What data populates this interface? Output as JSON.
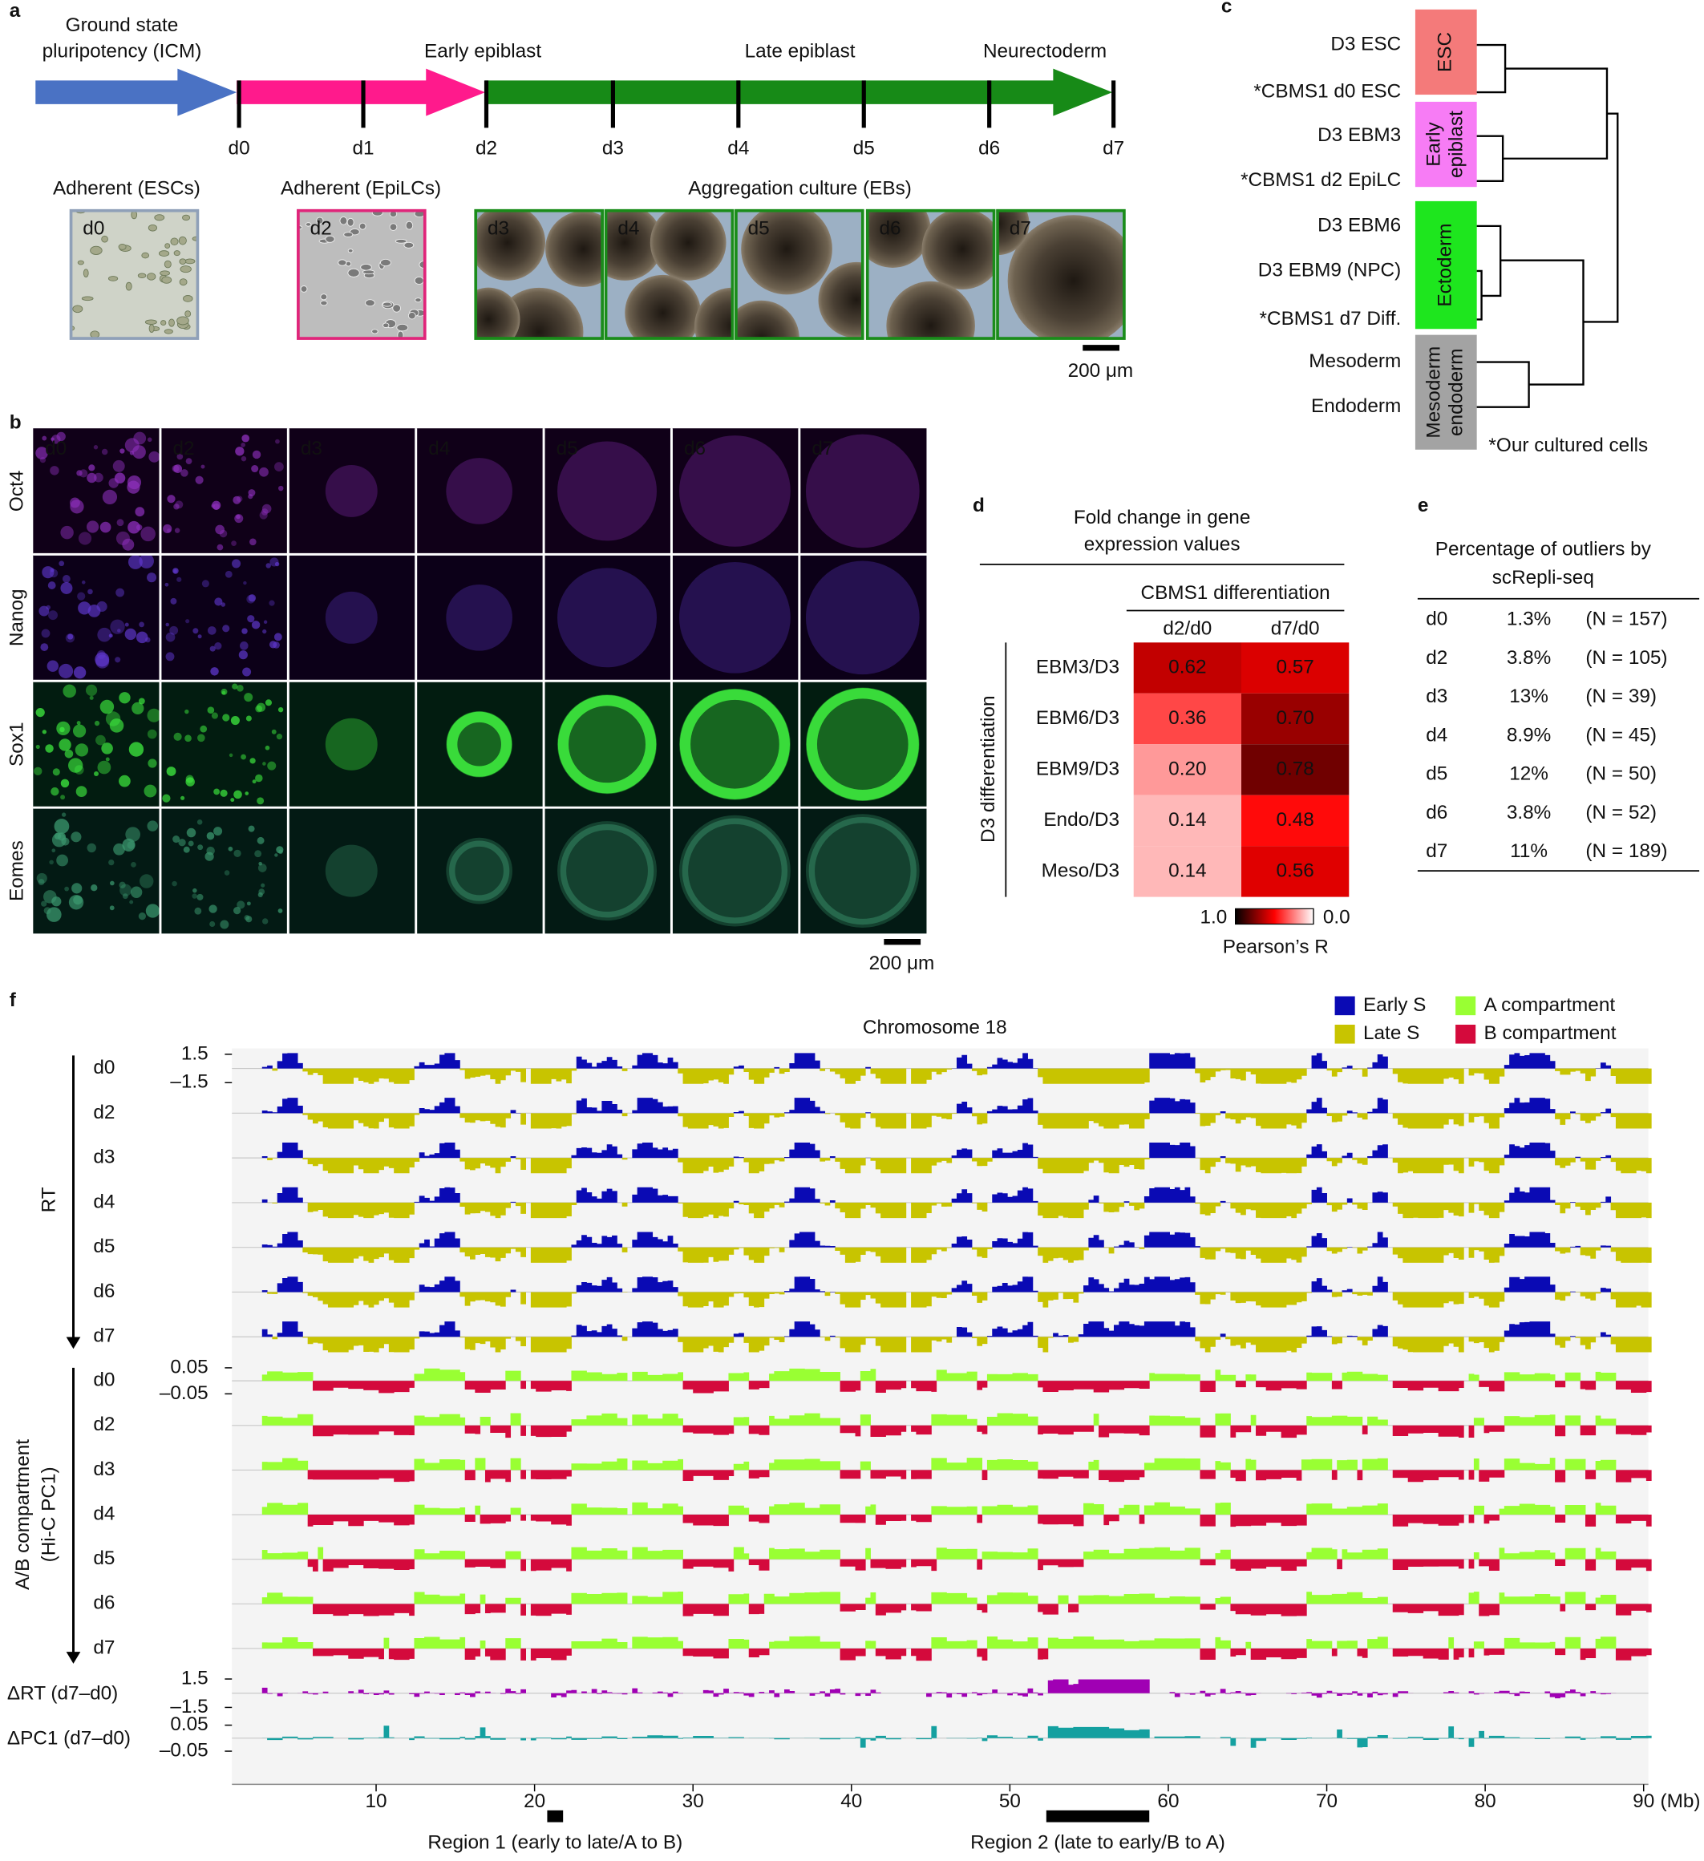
{
  "a": {
    "label": "a",
    "stages": [
      [
        "Ground state",
        "pluripotency (ICM)"
      ],
      [
        "Early epiblast"
      ],
      [
        "Late epiblast"
      ],
      [
        "Neurectoderm"
      ]
    ],
    "days": [
      "d0",
      "d1",
      "d2",
      "d3",
      "d4",
      "d5",
      "d6",
      "d7"
    ],
    "culture_labels": [
      "Adherent (ESCs)",
      "Adherent (EpiLCs)",
      "Aggregation culture (EBs)"
    ],
    "image_labels": [
      "d0",
      "d2",
      "d3",
      "d4",
      "d5",
      "d6",
      "d7"
    ],
    "scale_bar": "200 μm"
  },
  "b": {
    "label": "b",
    "columns": [
      "d0",
      "d2",
      "d3",
      "d4",
      "d5",
      "d6",
      "d7"
    ],
    "rows": [
      "Oct4",
      "Nanog",
      "Sox1",
      "Eomes"
    ],
    "scale_bar": "200 μm"
  },
  "c": {
    "label": "c",
    "leaves": [
      "D3 ESC",
      "*CBMS1 d0 ESC",
      "D3 EBM3",
      "*CBMS1 d2 EpiLC",
      "D3 EBM6",
      "D3 EBM9 (NPC)",
      "*CBMS1 d7 Diff.",
      "Mesoderm",
      "Endoderm"
    ],
    "groups": [
      {
        "lines": [
          "ESC"
        ],
        "color": "#f47a7a"
      },
      {
        "lines": [
          "Early",
          "epiblast"
        ],
        "color": "#f77cf5"
      },
      {
        "lines": [
          "Ectoderm"
        ],
        "color": "#1ee61e"
      },
      {
        "lines": [
          "Mesoderm",
          "endoderm"
        ],
        "color": "#a3a3a3"
      }
    ],
    "note": "*Our cultured cells"
  },
  "d": {
    "label": "d",
    "title": [
      "Fold change in gene",
      "expression values"
    ],
    "column_group": "CBMS1 differentiation",
    "columns": [
      "d2/d0",
      "d7/d0"
    ],
    "row_group": "D3 differentiation",
    "rows": [
      "EBM3/D3",
      "EBM6/D3",
      "EBM9/D3",
      "Endo/D3",
      "Meso/D3"
    ],
    "values": [
      [
        0.62,
        0.57
      ],
      [
        0.36,
        0.7
      ],
      [
        0.2,
        0.78
      ],
      [
        0.14,
        0.48
      ],
      [
        0.14,
        0.56
      ]
    ],
    "value_labels": [
      [
        "0.62",
        "0.57"
      ],
      [
        "0.36",
        "0.70"
      ],
      [
        "0.20",
        "0.78"
      ],
      [
        "0.14",
        "0.48"
      ],
      [
        "0.14",
        "0.56"
      ]
    ],
    "colorbar": {
      "lim": [
        0,
        1
      ],
      "ticks": [
        {
          "value": 1,
          "label": "1.0"
        },
        {
          "value": 0,
          "label": "0.0"
        }
      ],
      "title": "Pearson’s R"
    }
  },
  "e": {
    "label": "e",
    "title": [
      "Percentage of outliers by",
      "scRepli-seq"
    ],
    "rows": [
      [
        "d0",
        "1.3%",
        "(N = 157)"
      ],
      [
        "d2",
        "3.8%",
        "(N = 105)"
      ],
      [
        "d3",
        "13%",
        "(N = 39)"
      ],
      [
        "d4",
        "8.9%",
        "(N = 45)"
      ],
      [
        "d5",
        "12%",
        "(N = 50)"
      ],
      [
        "d6",
        "3.8%",
        "(N = 52)"
      ],
      [
        "d7",
        "11%",
        "(N = 189)"
      ]
    ]
  },
  "f": {
    "label": "f",
    "title": "Chromosome 18",
    "legend": [
      {
        "name": "Early S",
        "color": "#0a0ab4"
      },
      {
        "name": "Late S",
        "color": "#c8c400"
      },
      {
        "name": "A compartment",
        "color": "#99ff33"
      },
      {
        "name": "B compartment",
        "color": "#d40a3c"
      }
    ],
    "rt_label": "RT",
    "rt_days": [
      "d0",
      "d2",
      "d3",
      "d4",
      "d5",
      "d6",
      "d7"
    ],
    "rt_ticks": [
      1.5,
      {
        "value": -1.5,
        "label": "–1.5"
      }
    ],
    "pc_label": [
      "A/B compartment",
      "(Hi-C PC1)"
    ],
    "pc_days": [
      "d0",
      "d2",
      "d3",
      "d4",
      "d5",
      "d6",
      "d7"
    ],
    "pc_ticks": [
      0.05,
      {
        "value": -0.05,
        "label": "–0.05"
      }
    ],
    "delta_rt_label": "ΔRT (d7–d0)",
    "delta_rt_ticks": [
      1.5,
      {
        "value": -1.5,
        "label": "–1.5"
      }
    ],
    "delta_rt_color": "#a000b4",
    "delta_pc_label": "ΔPC1 (d7–d0)",
    "delta_pc_ticks": [
      0.05,
      {
        "value": -0.05,
        "label": "–0.05"
      }
    ],
    "delta_pc_color": "#14a0a0",
    "xlim": [
      0.9,
      90.3
    ],
    "xticks": [
      10,
      20,
      30,
      40,
      50,
      60,
      70,
      80,
      90
    ],
    "x_unit": "(Mb)",
    "regions": [
      {
        "label": "Region 1 (early to late/A to B)",
        "start": 20.8,
        "end": 21.8
      },
      {
        "label": "Region 2 (late to early/B to A)",
        "start": 52.3,
        "end": 58.8
      }
    ]
  }
}
